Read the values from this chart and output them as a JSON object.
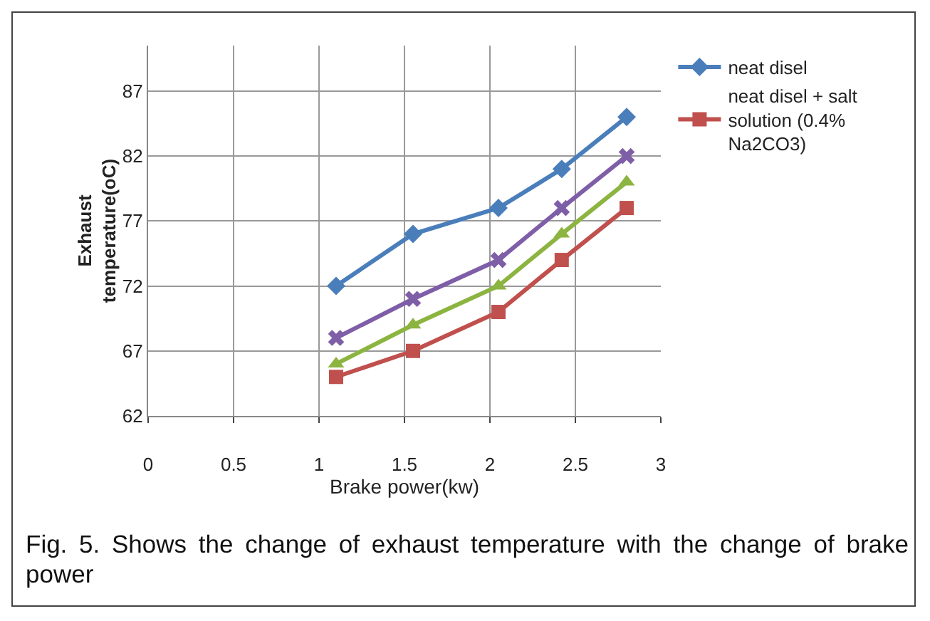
{
  "chart_data": {
    "type": "line",
    "xlabel": "Brake power(kw)",
    "ylabel": "Exhaust temperature(oC)",
    "x": [
      1.1,
      1.55,
      2.05,
      2.42,
      2.8
    ],
    "series": [
      {
        "name": "neat disel",
        "color": "#4a7ebb",
        "marker": "diamond",
        "values": [
          72,
          76,
          78,
          81,
          85
        ]
      },
      {
        "color": "#7f5ea8",
        "marker": "cross",
        "values": [
          68,
          71,
          74,
          78,
          82
        ]
      },
      {
        "color": "#8cb440",
        "marker": "triangle",
        "values": [
          66,
          69,
          72,
          76,
          80
        ]
      },
      {
        "name": "neat disel + salt solution (0.4% Na2CO3)",
        "color": "#c0504d",
        "marker": "square",
        "values": [
          65,
          67,
          70,
          74,
          78
        ]
      }
    ],
    "xlim": [
      0,
      3
    ],
    "xticks": [
      0,
      0.5,
      1,
      1.5,
      2,
      2.5,
      3
    ],
    "ylim": [
      62,
      90.5
    ],
    "yticks": [
      62,
      67,
      72,
      77,
      82,
      87
    ],
    "grid": true,
    "legend": "right",
    "line_style": "solid",
    "annotations": [
      "Fig. 5. Shows the change of exhaust temperature with the change of brake power"
    ]
  }
}
